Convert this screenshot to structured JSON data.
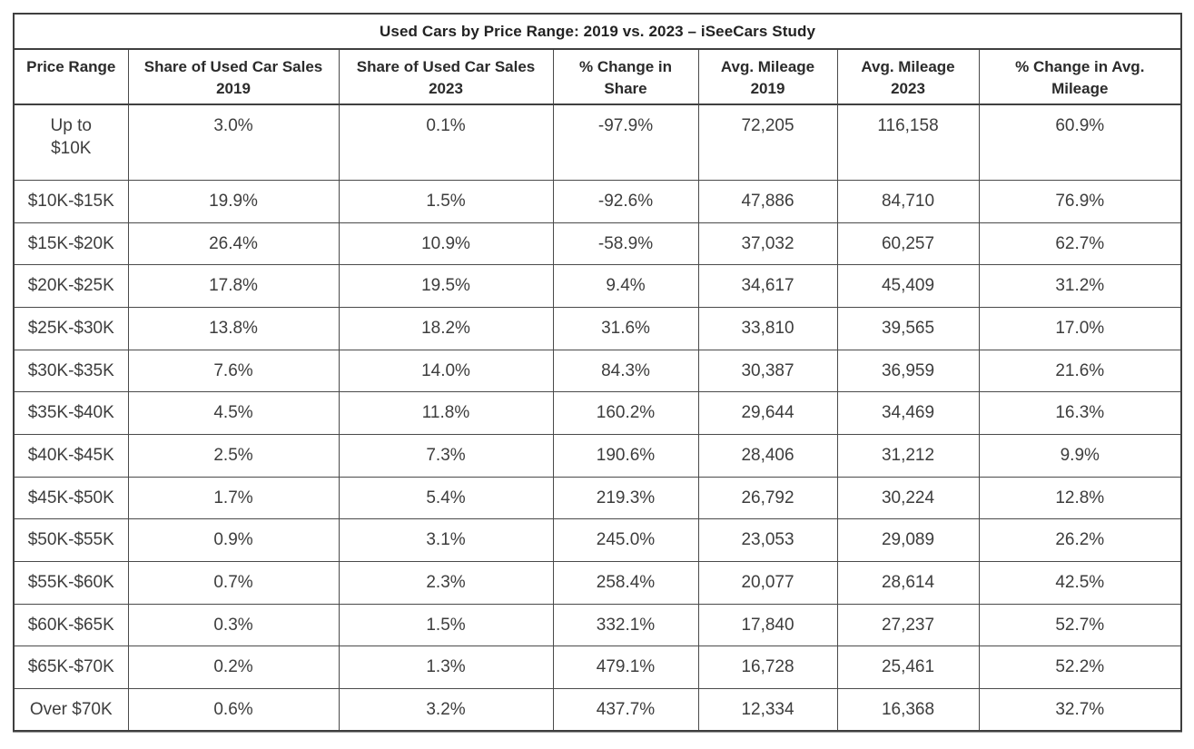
{
  "table": {
    "title": "Used Cars by Price Range: 2019 vs. 2023 – iSeeCars Study",
    "headers": [
      "Price Range",
      "Share of Used Car Sales\n2019",
      "Share of Used Car Sales\n2023",
      "% Change in\nShare",
      "Avg. Mileage\n2019",
      "Avg. Mileage\n2023",
      "% Change in Avg.\nMileage"
    ],
    "rows": [
      [
        "Up to\n$10K",
        "3.0%",
        "0.1%",
        "-97.9%",
        "72,205",
        "116,158",
        "60.9%"
      ],
      [
        "$10K-$15K",
        "19.9%",
        "1.5%",
        "-92.6%",
        "47,886",
        "84,710",
        "76.9%"
      ],
      [
        "$15K-$20K",
        "26.4%",
        "10.9%",
        "-58.9%",
        "37,032",
        "60,257",
        "62.7%"
      ],
      [
        "$20K-$25K",
        "17.8%",
        "19.5%",
        "9.4%",
        "34,617",
        "45,409",
        "31.2%"
      ],
      [
        "$25K-$30K",
        "13.8%",
        "18.2%",
        "31.6%",
        "33,810",
        "39,565",
        "17.0%"
      ],
      [
        "$30K-$35K",
        "7.6%",
        "14.0%",
        "84.3%",
        "30,387",
        "36,959",
        "21.6%"
      ],
      [
        "$35K-$40K",
        "4.5%",
        "11.8%",
        "160.2%",
        "29,644",
        "34,469",
        "16.3%"
      ],
      [
        "$40K-$45K",
        "2.5%",
        "7.3%",
        "190.6%",
        "28,406",
        "31,212",
        "9.9%"
      ],
      [
        "$45K-$50K",
        "1.7%",
        "5.4%",
        "219.3%",
        "26,792",
        "30,224",
        "12.8%"
      ],
      [
        "$50K-$55K",
        "0.9%",
        "3.1%",
        "245.0%",
        "23,053",
        "29,089",
        "26.2%"
      ],
      [
        "$55K-$60K",
        "0.7%",
        "2.3%",
        "258.4%",
        "20,077",
        "28,614",
        "42.5%"
      ],
      [
        "$60K-$65K",
        "0.3%",
        "1.5%",
        "332.1%",
        "17,840",
        "27,237",
        "52.7%"
      ],
      [
        "$65K-$70K",
        "0.2%",
        "1.3%",
        "479.1%",
        "16,728",
        "25,461",
        "52.2%"
      ],
      [
        "Over $70K",
        "0.6%",
        "3.2%",
        "437.7%",
        "12,334",
        "16,368",
        "32.7%"
      ]
    ]
  },
  "chart_data": {
    "type": "table",
    "title": "Used Cars by Price Range: 2019 vs. 2023 – iSeeCars Study",
    "columns": [
      "Price Range",
      "Share of Used Car Sales 2019",
      "Share of Used Car Sales 2023",
      "% Change in Share",
      "Avg. Mileage 2019",
      "Avg. Mileage 2023",
      "% Change in Avg. Mileage"
    ],
    "rows": [
      {
        "price_range": "Up to $10K",
        "share_2019_pct": 3.0,
        "share_2023_pct": 0.1,
        "share_change_pct": -97.9,
        "avg_mileage_2019": 72205,
        "avg_mileage_2023": 116158,
        "mileage_change_pct": 60.9
      },
      {
        "price_range": "$10K-$15K",
        "share_2019_pct": 19.9,
        "share_2023_pct": 1.5,
        "share_change_pct": -92.6,
        "avg_mileage_2019": 47886,
        "avg_mileage_2023": 84710,
        "mileage_change_pct": 76.9
      },
      {
        "price_range": "$15K-$20K",
        "share_2019_pct": 26.4,
        "share_2023_pct": 10.9,
        "share_change_pct": -58.9,
        "avg_mileage_2019": 37032,
        "avg_mileage_2023": 60257,
        "mileage_change_pct": 62.7
      },
      {
        "price_range": "$20K-$25K",
        "share_2019_pct": 17.8,
        "share_2023_pct": 19.5,
        "share_change_pct": 9.4,
        "avg_mileage_2019": 34617,
        "avg_mileage_2023": 45409,
        "mileage_change_pct": 31.2
      },
      {
        "price_range": "$25K-$30K",
        "share_2019_pct": 13.8,
        "share_2023_pct": 18.2,
        "share_change_pct": 31.6,
        "avg_mileage_2019": 33810,
        "avg_mileage_2023": 39565,
        "mileage_change_pct": 17.0
      },
      {
        "price_range": "$30K-$35K",
        "share_2019_pct": 7.6,
        "share_2023_pct": 14.0,
        "share_change_pct": 84.3,
        "avg_mileage_2019": 30387,
        "avg_mileage_2023": 36959,
        "mileage_change_pct": 21.6
      },
      {
        "price_range": "$35K-$40K",
        "share_2019_pct": 4.5,
        "share_2023_pct": 11.8,
        "share_change_pct": 160.2,
        "avg_mileage_2019": 29644,
        "avg_mileage_2023": 34469,
        "mileage_change_pct": 16.3
      },
      {
        "price_range": "$40K-$45K",
        "share_2019_pct": 2.5,
        "share_2023_pct": 7.3,
        "share_change_pct": 190.6,
        "avg_mileage_2019": 28406,
        "avg_mileage_2023": 31212,
        "mileage_change_pct": 9.9
      },
      {
        "price_range": "$45K-$50K",
        "share_2019_pct": 1.7,
        "share_2023_pct": 5.4,
        "share_change_pct": 219.3,
        "avg_mileage_2019": 26792,
        "avg_mileage_2023": 30224,
        "mileage_change_pct": 12.8
      },
      {
        "price_range": "$50K-$55K",
        "share_2019_pct": 0.9,
        "share_2023_pct": 3.1,
        "share_change_pct": 245.0,
        "avg_mileage_2019": 23053,
        "avg_mileage_2023": 29089,
        "mileage_change_pct": 26.2
      },
      {
        "price_range": "$55K-$60K",
        "share_2019_pct": 0.7,
        "share_2023_pct": 2.3,
        "share_change_pct": 258.4,
        "avg_mileage_2019": 20077,
        "avg_mileage_2023": 28614,
        "mileage_change_pct": 42.5
      },
      {
        "price_range": "$60K-$65K",
        "share_2019_pct": 0.3,
        "share_2023_pct": 1.5,
        "share_change_pct": 332.1,
        "avg_mileage_2019": 17840,
        "avg_mileage_2023": 27237,
        "mileage_change_pct": 52.7
      },
      {
        "price_range": "$65K-$70K",
        "share_2019_pct": 0.2,
        "share_2023_pct": 1.3,
        "share_change_pct": 479.1,
        "avg_mileage_2019": 16728,
        "avg_mileage_2023": 25461,
        "mileage_change_pct": 52.2
      },
      {
        "price_range": "Over $70K",
        "share_2019_pct": 0.6,
        "share_2023_pct": 3.2,
        "share_change_pct": 437.7,
        "avg_mileage_2019": 12334,
        "avg_mileage_2023": 16368,
        "mileage_change_pct": 32.7
      }
    ],
    "colors": {
      "border": "#3f3f3f",
      "inner_border": "#4a4a4a",
      "text": "#3d3d3d",
      "header_text": "#2b2b2b",
      "background": "#ffffff"
    },
    "layout": {
      "grid": true,
      "cell_alignment": "center",
      "header_rows": 2
    }
  }
}
